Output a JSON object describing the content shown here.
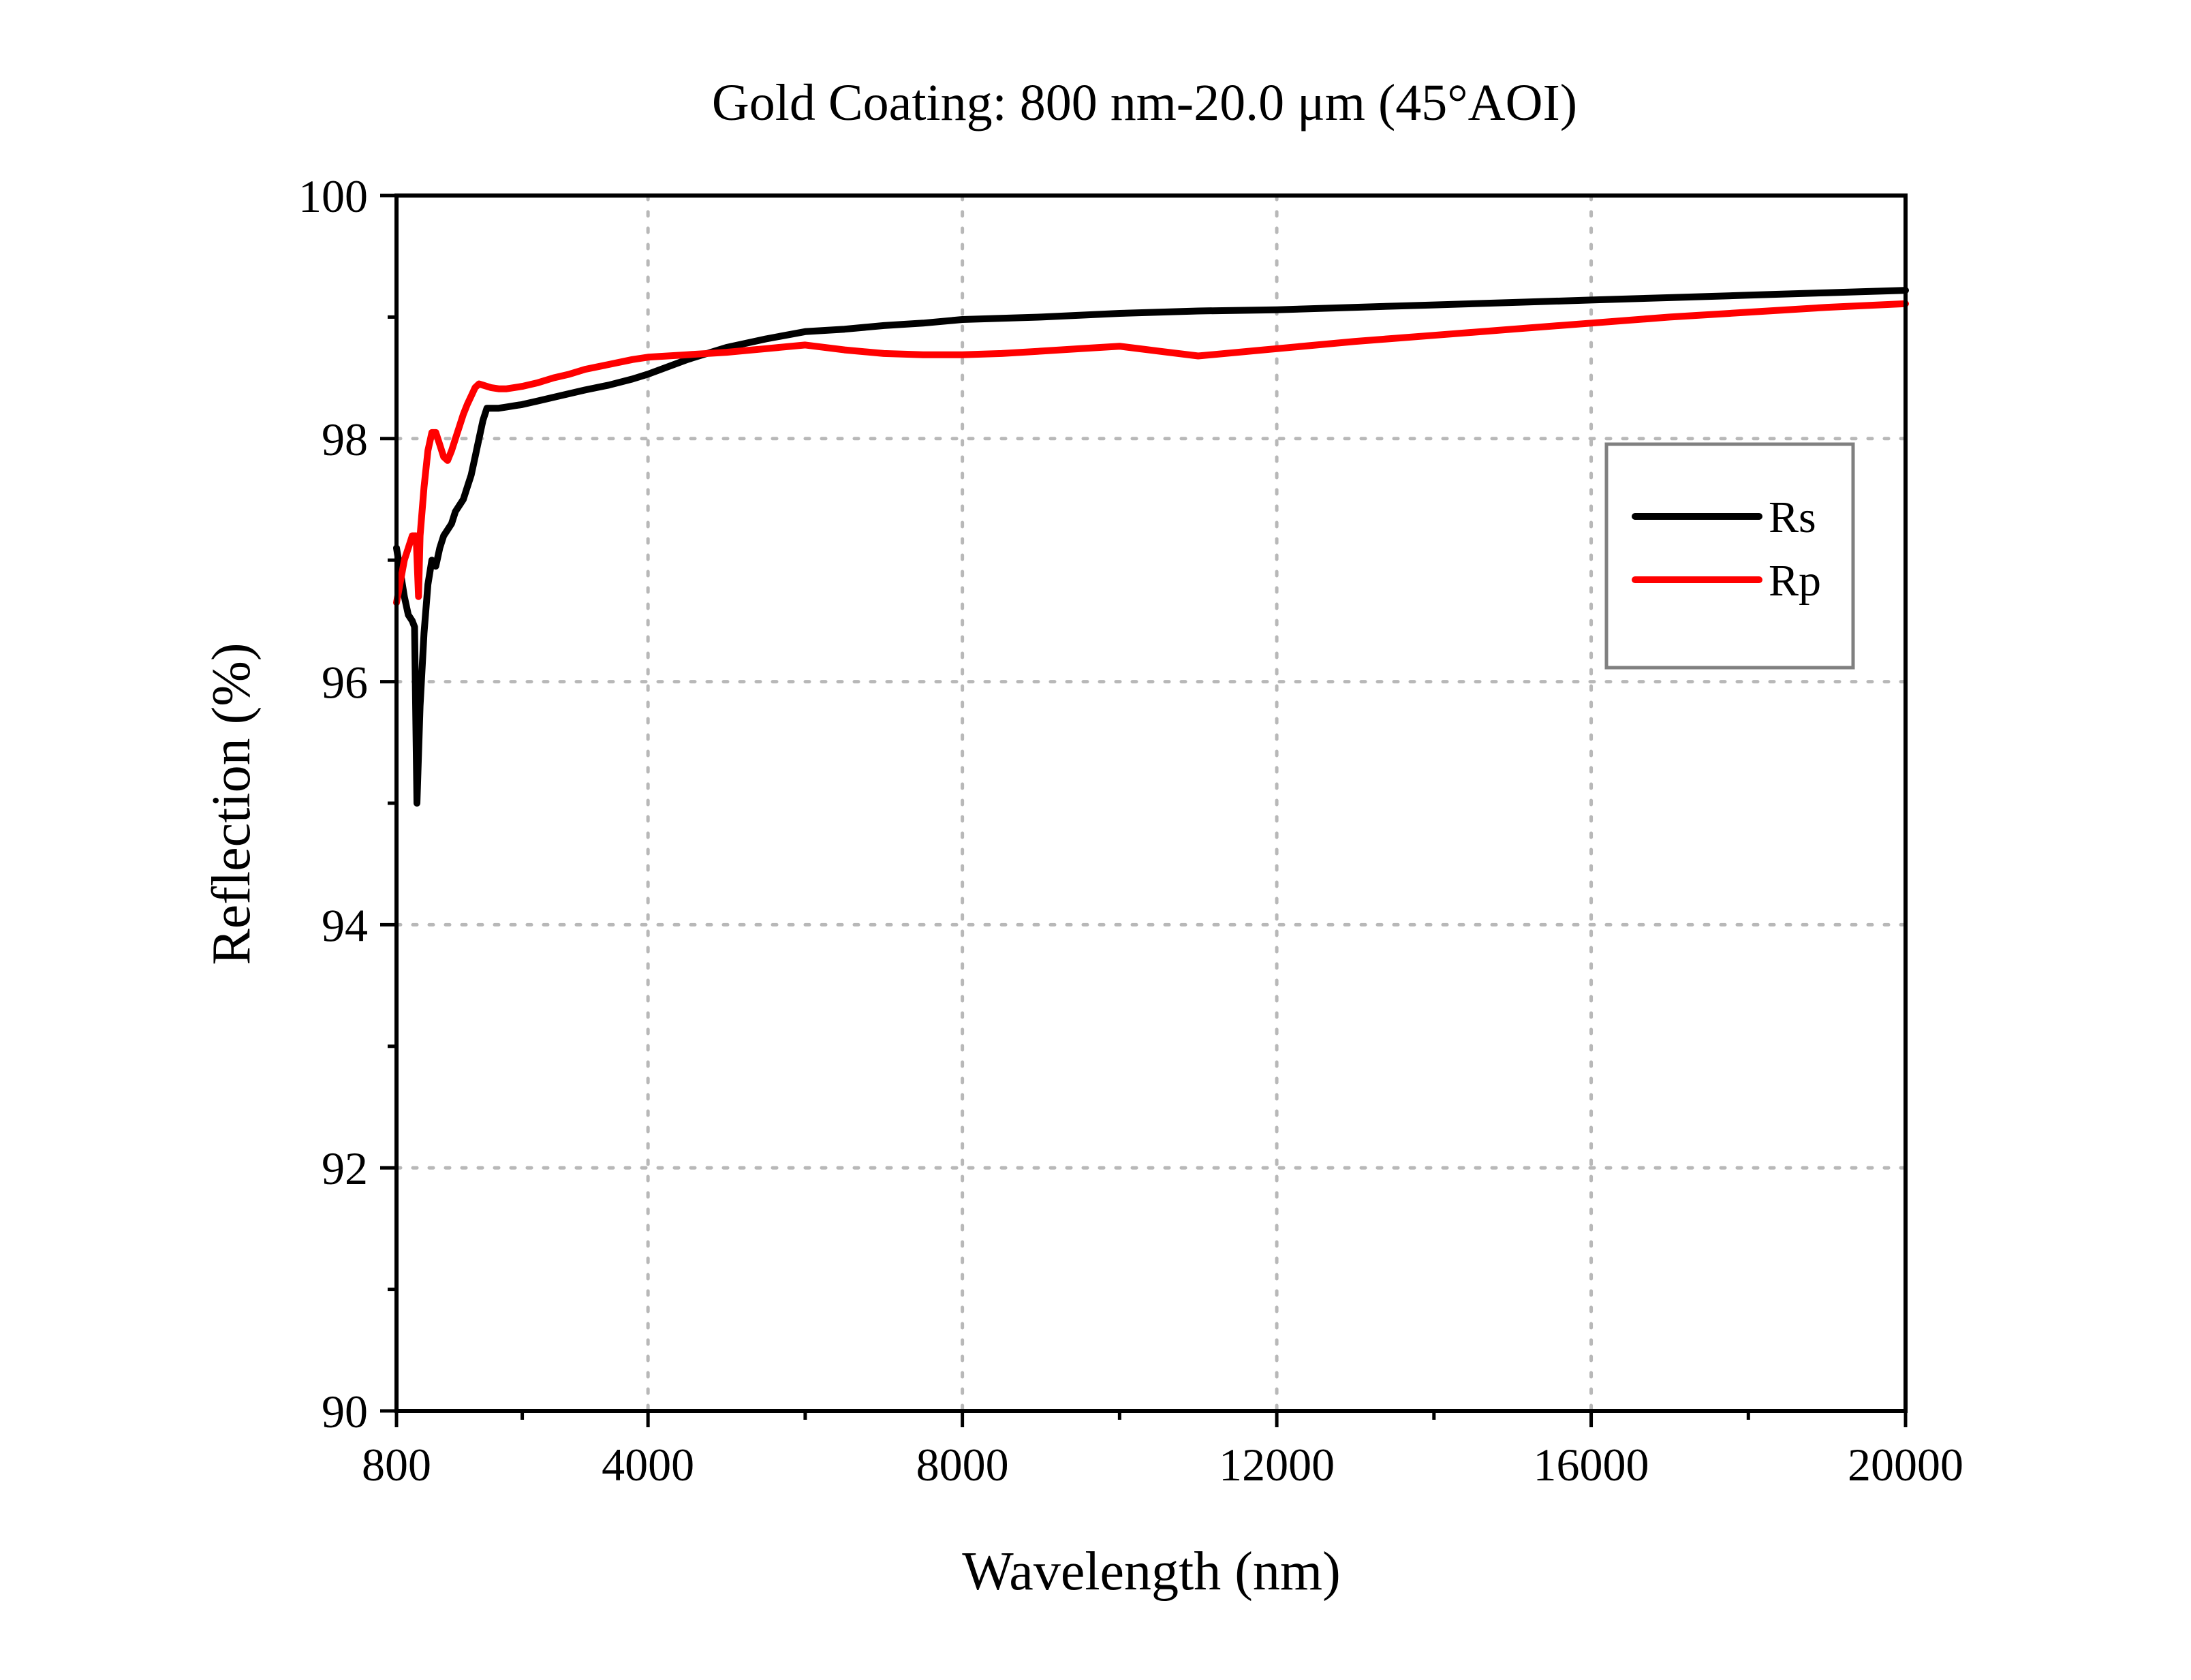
{
  "chart_data": {
    "type": "line",
    "title": "Gold Coating: 800 nm-20.0 μm (45°AOI)",
    "xlabel": "Wavelength (nm)",
    "ylabel": "Reflection (%)",
    "xlim": [
      800,
      20000
    ],
    "ylim": [
      90,
      100
    ],
    "x_ticks": [
      800,
      4000,
      8000,
      12000,
      16000,
      20000
    ],
    "y_ticks": [
      90,
      92,
      94,
      96,
      98,
      100
    ],
    "x_vgrid": [
      4000,
      8000,
      12000,
      16000
    ],
    "y_hgrid": [
      92,
      94,
      96,
      98
    ],
    "x_minor": [
      2400,
      6000,
      10000,
      14000,
      18000
    ],
    "y_minor": [
      91,
      93,
      95,
      97,
      99
    ],
    "grid": true,
    "legend_position": "right",
    "series": [
      {
        "name": "Rs",
        "color": "#000000",
        "x": [
          800,
          850,
          900,
          950,
          1000,
          1030,
          1060,
          1100,
          1150,
          1200,
          1250,
          1300,
          1350,
          1400,
          1450,
          1500,
          1550,
          1600,
          1650,
          1700,
          1750,
          1800,
          1850,
          1900,
          1950,
          2000,
          2050,
          2100,
          2200,
          2300,
          2400,
          2600,
          2800,
          3000,
          3200,
          3500,
          3800,
          4000,
          4500,
          5000,
          5500,
          6000,
          6500,
          7000,
          7500,
          8000,
          9000,
          10000,
          11000,
          12000,
          13000,
          14000,
          15000,
          16000,
          17000,
          18000,
          19000,
          20000
        ],
        "y": [
          97.1,
          96.9,
          96.7,
          96.55,
          96.5,
          96.45,
          95.0,
          95.8,
          96.4,
          96.8,
          97.0,
          96.95,
          97.1,
          97.2,
          97.25,
          97.3,
          97.4,
          97.45,
          97.5,
          97.6,
          97.7,
          97.85,
          98.0,
          98.15,
          98.25,
          98.25,
          98.25,
          98.25,
          98.26,
          98.27,
          98.28,
          98.31,
          98.34,
          98.37,
          98.4,
          98.44,
          98.49,
          98.53,
          98.65,
          98.75,
          98.82,
          98.88,
          98.9,
          98.93,
          98.95,
          98.98,
          99.0,
          99.03,
          99.05,
          99.06,
          99.08,
          99.1,
          99.12,
          99.14,
          99.16,
          99.18,
          99.2,
          99.22
        ]
      },
      {
        "name": "Rp",
        "color": "#ff0000",
        "x": [
          800,
          900,
          1000,
          1050,
          1080,
          1100,
          1150,
          1200,
          1250,
          1300,
          1350,
          1400,
          1450,
          1500,
          1550,
          1600,
          1650,
          1700,
          1750,
          1800,
          1850,
          1900,
          1950,
          2000,
          2100,
          2200,
          2300,
          2400,
          2600,
          2800,
          3000,
          3200,
          3500,
          3800,
          4000,
          4500,
          5000,
          5500,
          6000,
          6500,
          7000,
          7500,
          8000,
          8500,
          9000,
          9500,
          10000,
          10500,
          11000,
          12000,
          13000,
          14000,
          15000,
          16000,
          17000,
          18000,
          19000,
          20000
        ],
        "y": [
          96.65,
          97.0,
          97.2,
          97.2,
          96.7,
          97.2,
          97.6,
          97.9,
          98.05,
          98.05,
          97.95,
          97.85,
          97.82,
          97.9,
          98.0,
          98.1,
          98.2,
          98.28,
          98.35,
          98.42,
          98.45,
          98.44,
          98.43,
          98.42,
          98.41,
          98.41,
          98.42,
          98.43,
          98.46,
          98.5,
          98.53,
          98.57,
          98.61,
          98.65,
          98.67,
          98.69,
          98.71,
          98.74,
          98.77,
          98.73,
          98.7,
          98.69,
          98.69,
          98.7,
          98.72,
          98.74,
          98.76,
          98.72,
          98.68,
          98.74,
          98.8,
          98.85,
          98.9,
          98.95,
          99.0,
          99.04,
          99.08,
          99.11
        ]
      }
    ]
  }
}
